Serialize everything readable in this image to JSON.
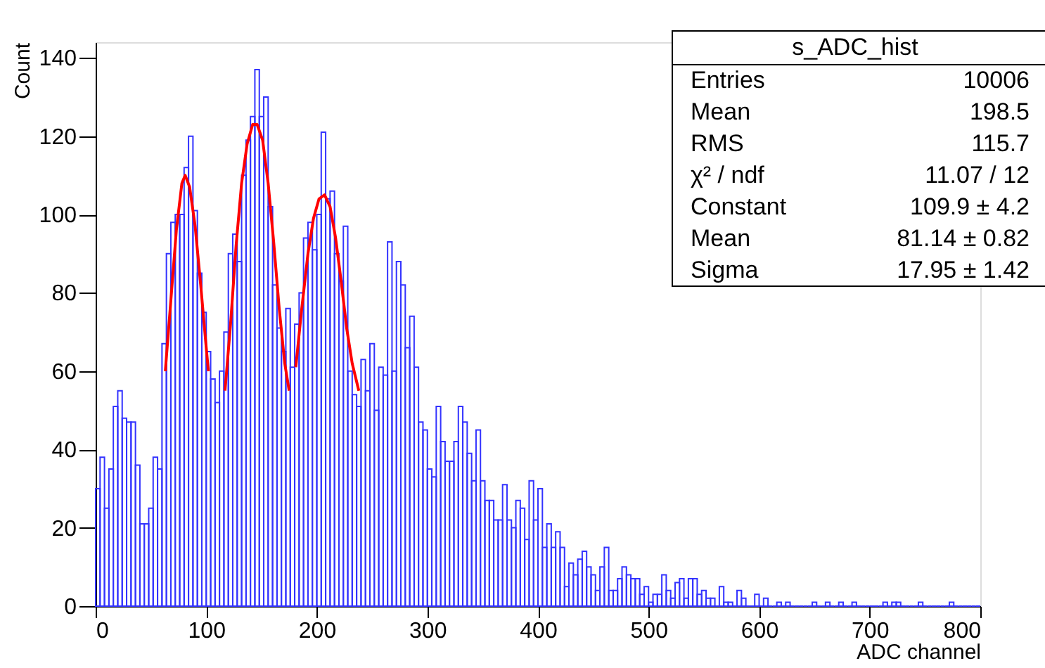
{
  "chart_data": {
    "type": "histogram",
    "xlabel": "ADC channel",
    "ylabel": "Count",
    "color": "#3333ff",
    "bins": [
      0,
      4,
      8,
      12,
      16,
      20,
      24,
      28,
      32,
      36,
      40,
      44,
      48,
      52,
      56,
      60,
      64,
      68,
      72,
      76,
      80,
      84,
      88,
      92,
      96,
      100,
      104,
      108,
      112,
      116,
      120,
      124,
      128,
      132,
      136,
      140,
      144,
      148,
      152,
      156,
      160,
      164,
      168,
      172,
      176,
      180,
      184,
      188,
      192,
      196,
      200,
      204,
      208,
      212,
      216,
      220,
      224,
      228,
      232,
      236,
      240,
      244,
      248,
      252,
      256,
      260,
      264,
      268,
      272,
      276,
      280,
      284,
      288,
      292,
      296,
      300,
      304,
      308,
      312,
      316,
      320,
      324,
      328,
      332,
      336,
      340,
      344,
      348,
      352,
      356,
      360,
      364,
      368,
      372,
      376,
      380,
      384,
      388,
      392,
      396,
      400,
      404,
      408,
      412,
      416,
      420,
      424,
      428,
      432,
      436,
      440,
      444,
      448,
      452,
      456,
      460,
      464,
      468,
      472,
      476,
      480,
      484,
      488,
      492,
      496,
      500,
      504,
      508,
      512,
      516,
      520,
      524,
      528,
      532,
      536,
      540,
      544,
      548,
      552,
      556,
      560,
      564,
      568,
      572,
      576,
      580,
      584,
      588,
      592,
      596,
      600,
      604,
      608,
      612,
      616,
      620,
      624,
      628,
      632,
      636,
      640,
      644,
      648,
      652,
      656,
      660,
      664,
      668,
      672,
      676,
      680,
      684,
      688,
      692,
      696,
      700,
      704,
      708,
      712,
      716,
      720,
      724,
      728,
      732,
      736,
      740,
      744,
      748,
      752,
      756,
      760,
      764,
      768,
      772,
      776,
      780,
      784,
      788,
      792,
      796,
      800
    ],
    "values": [
      30,
      38,
      25,
      35,
      51,
      55,
      48,
      47,
      47,
      36,
      21,
      21,
      25,
      38,
      35,
      67,
      90,
      98,
      100,
      100,
      112,
      120,
      101,
      85,
      75,
      65,
      58,
      52,
      60,
      70,
      90,
      95,
      88,
      110,
      119,
      125,
      137,
      125,
      130,
      102,
      82,
      71,
      65,
      76,
      61,
      72,
      80,
      94,
      98,
      91,
      100,
      121,
      104,
      106,
      90,
      83,
      97,
      60,
      54,
      51,
      63,
      55,
      67,
      50,
      61,
      59,
      93,
      60,
      88,
      82,
      66,
      74,
      61,
      47,
      45,
      35,
      33,
      51,
      42,
      37,
      37,
      42,
      51,
      47,
      39,
      32,
      45,
      32,
      27,
      27,
      22,
      22,
      31,
      22,
      20,
      27,
      25,
      17,
      32,
      22,
      30,
      15,
      21,
      15,
      19,
      15,
      5,
      11,
      8,
      12,
      14,
      10,
      8,
      4,
      10,
      15,
      4,
      4,
      7,
      10,
      8,
      7,
      7,
      3,
      5,
      1,
      3,
      3,
      8,
      4,
      2,
      6,
      7,
      2,
      7,
      7,
      3,
      4,
      2,
      2,
      0,
      5,
      1,
      1,
      0,
      4,
      2,
      0,
      0,
      3,
      0,
      2,
      0,
      0,
      1,
      0,
      1,
      0,
      0,
      0,
      0,
      0,
      1,
      0,
      0,
      1,
      0,
      0,
      1,
      0,
      0,
      1,
      0,
      0,
      0,
      0,
      0,
      0,
      1,
      0,
      1,
      1,
      0,
      0,
      0,
      0,
      1,
      0,
      0,
      0,
      0,
      0,
      0,
      1,
      0,
      0,
      0,
      0,
      0,
      0
    ],
    "series": [
      {
        "type": "line",
        "color": "#ff0000",
        "x": [
          63,
          68,
          73,
          78,
          81,
          85,
          90,
          95,
          100,
          102
        ],
        "values": [
          60,
          78,
          96,
          108,
          110,
          107,
          97,
          82,
          66,
          60
        ]
      },
      {
        "type": "line",
        "color": "#ff0000",
        "x": [
          117,
          122,
          127,
          132,
          137,
          142,
          146,
          151,
          156,
          161,
          166,
          171,
          175
        ],
        "values": [
          55,
          72,
          92,
          108,
          118,
          123,
          123,
          119,
          108,
          93,
          76,
          62,
          55
        ]
      },
      {
        "type": "line",
        "color": "#ff0000",
        "x": [
          181,
          186,
          192,
          197,
          202,
          207,
          212,
          217,
          222,
          227,
          232,
          238
        ],
        "values": [
          61,
          75,
          90,
          99,
          104,
          105,
          102,
          94,
          83,
          71,
          62,
          55
        ]
      }
    ],
    "xlim": [
      0,
      800
    ],
    "xticks": [
      0,
      100,
      200,
      300,
      400,
      500,
      600,
      700,
      800
    ],
    "ylim": [
      0,
      144
    ],
    "yticks": [
      0,
      20,
      40,
      60,
      80,
      100,
      120,
      140
    ],
    "grid": false,
    "annotations": [
      "s_ADC_hist",
      "Entries",
      "10006",
      "Mean",
      "198.5",
      "RMS",
      "115.7",
      "χ² / ndf",
      "11.07 / 12",
      "Constant",
      "109.9 ± 4.2",
      "Mean",
      "81.14 ± 0.82",
      "Sigma",
      "17.95 ± 1.42"
    ]
  }
}
